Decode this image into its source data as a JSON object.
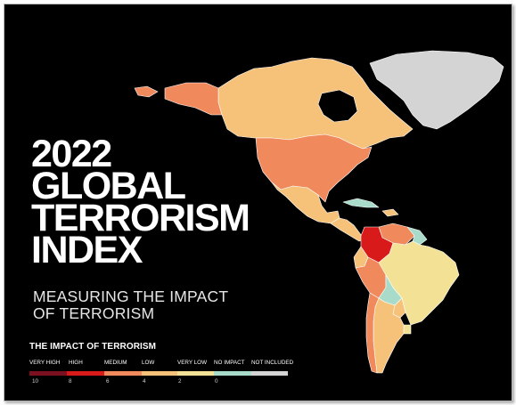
{
  "title": {
    "lines": [
      "2022",
      "GLOBAL",
      "TERRORISM",
      "INDEX"
    ]
  },
  "subtitle": {
    "lines": [
      "MEASURING THE IMPACT",
      "OF TERRORISM"
    ]
  },
  "legend": {
    "title": "THE IMPACT OF TERRORISM",
    "categories": [
      {
        "label": "VERY HIGH",
        "color": "#7b1020"
      },
      {
        "label": "HIGH",
        "color": "#d91a1a"
      },
      {
        "label": "MEDIUM",
        "color": "#f08a5d"
      },
      {
        "label": "LOW",
        "color": "#f6c27a"
      },
      {
        "label": "VERY LOW",
        "color": "#f3e295"
      },
      {
        "label": "NO IMPACT",
        "color": "#a8dbc9"
      },
      {
        "label": "NOT INCLUDED",
        "color": "#d4d4d4"
      }
    ],
    "ticks": [
      "10",
      "8",
      "6",
      "4",
      "2",
      "0"
    ]
  },
  "map_colors": {
    "greenland": "#d4d4d4",
    "canada": "#f6c27a",
    "alaska": "#f08a5d",
    "usa": "#f08a5d",
    "mexico": "#f6c27a",
    "central_america": "#f6c27a",
    "cuba": "#a8dbc9",
    "caribbean": "#f6c27a",
    "colombia": "#d91a1a",
    "venezuela": "#f08a5d",
    "guianas": "#a8dbc9",
    "ecuador": "#f6c27a",
    "peru": "#f08a5d",
    "brazil": "#f3e295",
    "bolivia": "#a8dbc9",
    "paraguay": "#f6c27a",
    "uruguay": "#f3e295",
    "argentina": "#f6c27a",
    "chile": "#f08a5d"
  }
}
